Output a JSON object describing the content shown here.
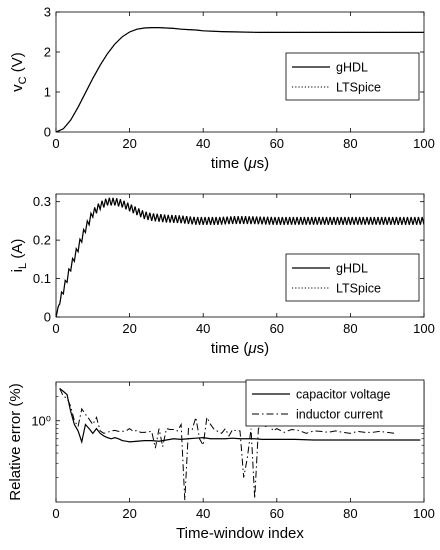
{
  "chart_data": [
    {
      "type": "line",
      "xlabel": "time (μs)",
      "ylabel_main": "v",
      "ylabel_sub": "C",
      "ylabel_unit": " (V)",
      "xlim": [
        0,
        100
      ],
      "ylim": [
        0,
        3
      ],
      "xticks": [
        "0",
        "20",
        "40",
        "60",
        "80",
        "100"
      ],
      "yticks": [
        "0",
        "1",
        "2",
        "3"
      ],
      "grid": false,
      "legend_position": "right",
      "series": [
        {
          "name": "gHDL",
          "style": "solid",
          "x": [
            0,
            2,
            4,
            6,
            8,
            10,
            12,
            14,
            16,
            18,
            20,
            22,
            24,
            26,
            28,
            30,
            32,
            34,
            36,
            38,
            40,
            45,
            50,
            55,
            60,
            70,
            80,
            90,
            100
          ],
          "y": [
            0,
            0.08,
            0.3,
            0.62,
            0.98,
            1.34,
            1.67,
            1.96,
            2.2,
            2.38,
            2.5,
            2.57,
            2.6,
            2.61,
            2.61,
            2.6,
            2.59,
            2.57,
            2.56,
            2.55,
            2.53,
            2.51,
            2.5,
            2.49,
            2.49,
            2.49,
            2.49,
            2.49,
            2.49
          ]
        },
        {
          "name": "LTSpice",
          "style": "dotted",
          "x": [
            0,
            2,
            4,
            6,
            8,
            10,
            12,
            14,
            16,
            18,
            20,
            22,
            24,
            26,
            28,
            30,
            32,
            34,
            36,
            38,
            40,
            45,
            50,
            55,
            60,
            70,
            80,
            90,
            100
          ],
          "y": [
            0,
            0.08,
            0.3,
            0.62,
            0.98,
            1.34,
            1.67,
            1.96,
            2.2,
            2.38,
            2.5,
            2.57,
            2.6,
            2.61,
            2.61,
            2.6,
            2.59,
            2.57,
            2.56,
            2.55,
            2.53,
            2.51,
            2.5,
            2.49,
            2.49,
            2.49,
            2.49,
            2.49,
            2.49
          ]
        }
      ]
    },
    {
      "type": "line",
      "xlabel": "time (μs)",
      "ylabel_main": "i",
      "ylabel_sub": "L",
      "ylabel_unit": " (A)",
      "xlim": [
        0,
        100
      ],
      "ylim": [
        0,
        0.32
      ],
      "xticks": [
        "0",
        "20",
        "40",
        "60",
        "80",
        "100"
      ],
      "yticks": [
        "0",
        "0.1",
        "0.2",
        "0.3"
      ],
      "grid": false,
      "legend_position": "right",
      "ripple_amplitude": 0.01,
      "ripple_count": 100,
      "series": [
        {
          "name": "gHDL",
          "style": "solid",
          "x": [
            0,
            1,
            2,
            4,
            6,
            8,
            10,
            12,
            14,
            16,
            18,
            20,
            22,
            24,
            26,
            28,
            30,
            32,
            34,
            36,
            38,
            40,
            44,
            48,
            52,
            56,
            60,
            70,
            80,
            90,
            100
          ],
          "y": [
            0,
            0.04,
            0.07,
            0.13,
            0.18,
            0.23,
            0.27,
            0.29,
            0.3,
            0.3,
            0.295,
            0.285,
            0.275,
            0.265,
            0.26,
            0.258,
            0.256,
            0.255,
            0.254,
            0.252,
            0.25,
            0.25,
            0.25,
            0.252,
            0.252,
            0.251,
            0.25,
            0.25,
            0.25,
            0.25,
            0.25
          ]
        },
        {
          "name": "LTSpice",
          "style": "dotted",
          "x": [
            0,
            1,
            2,
            4,
            6,
            8,
            10,
            12,
            14,
            16,
            18,
            20,
            22,
            24,
            26,
            28,
            30,
            32,
            34,
            36,
            38,
            40,
            44,
            48,
            52,
            56,
            60,
            70,
            80,
            90,
            100
          ],
          "y": [
            0,
            0.04,
            0.07,
            0.13,
            0.18,
            0.23,
            0.27,
            0.29,
            0.3,
            0.3,
            0.295,
            0.285,
            0.275,
            0.265,
            0.26,
            0.258,
            0.256,
            0.255,
            0.254,
            0.252,
            0.25,
            0.25,
            0.25,
            0.252,
            0.252,
            0.251,
            0.25,
            0.25,
            0.25,
            0.25,
            0.25
          ]
        }
      ]
    },
    {
      "type": "line",
      "xlabel": "Time-window index",
      "ylabel": "Relative error (%)",
      "xlim": [
        0,
        100
      ],
      "ylim": [
        0.1,
        3
      ],
      "yscale": "log",
      "xticks": [
        "0",
        "20",
        "40",
        "60",
        "80",
        "100"
      ],
      "yticks": [
        "10⁰"
      ],
      "ytick_values": [
        1
      ],
      "grid": false,
      "legend_position": "top-right",
      "series": [
        {
          "name": "capacitor voltage",
          "style": "solid",
          "x": [
            1,
            2,
            3,
            4,
            5,
            6,
            7,
            8,
            9,
            10,
            11,
            12,
            13,
            14,
            15,
            16,
            17,
            18,
            19,
            20,
            22,
            24,
            26,
            28,
            30,
            32,
            34,
            36,
            38,
            40,
            42,
            44,
            46,
            48,
            50,
            52,
            54,
            56,
            58,
            60,
            65,
            70,
            75,
            80,
            85,
            90,
            95,
            99
          ],
          "y": [
            2.5,
            2.3,
            2.1,
            1.3,
            0.9,
            0.75,
            0.55,
            0.9,
            0.8,
            0.7,
            0.8,
            0.7,
            0.65,
            0.62,
            0.6,
            0.62,
            0.6,
            0.57,
            0.56,
            0.55,
            0.56,
            0.57,
            0.57,
            0.56,
            0.58,
            0.6,
            0.59,
            0.6,
            0.61,
            0.62,
            0.6,
            0.6,
            0.6,
            0.61,
            0.6,
            0.6,
            0.6,
            0.59,
            0.59,
            0.59,
            0.59,
            0.58,
            0.58,
            0.58,
            0.58,
            0.58,
            0.58,
            0.58
          ]
        },
        {
          "name": "inductor current",
          "style": "dashdot",
          "x": [
            1,
            2,
            3,
            4,
            5,
            6,
            7,
            8,
            9,
            10,
            11,
            12,
            13,
            14,
            15,
            16,
            17,
            18,
            19,
            20,
            21,
            22,
            23,
            24,
            25,
            26,
            27,
            28,
            29,
            30,
            31,
            32,
            33,
            34,
            35,
            36,
            37,
            38,
            39,
            40,
            41,
            42,
            43,
            44,
            45,
            46,
            47,
            48,
            49,
            50,
            51,
            52,
            53,
            54,
            55,
            56,
            57,
            58,
            59,
            60,
            62,
            64,
            66,
            68,
            70,
            72,
            74,
            76,
            78,
            80,
            82,
            84,
            86,
            88,
            90,
            92
          ],
          "y": [
            2.5,
            2.0,
            1.9,
            1.5,
            1.0,
            0.85,
            1.4,
            1.2,
            1.05,
            0.9,
            1.1,
            0.75,
            0.7,
            0.72,
            0.75,
            0.76,
            0.74,
            0.74,
            0.75,
            0.8,
            0.74,
            0.76,
            0.72,
            0.72,
            0.73,
            0.74,
            0.46,
            0.8,
            0.48,
            0.8,
            0.78,
            0.78,
            0.75,
            0.9,
            0.105,
            0.8,
            0.78,
            1.1,
            0.6,
            0.5,
            1.1,
            0.9,
            0.78,
            0.74,
            0.7,
            0.8,
            0.65,
            0.78,
            0.75,
            0.75,
            0.2,
            0.35,
            0.8,
            0.11,
            0.8,
            0.9,
            0.85,
            0.9,
            0.75,
            0.8,
            0.72,
            0.78,
            0.76,
            0.7,
            0.75,
            0.74,
            0.72,
            0.75,
            0.72,
            0.7,
            0.74,
            0.72,
            0.72,
            0.74,
            0.72,
            0.7
          ]
        }
      ]
    }
  ]
}
